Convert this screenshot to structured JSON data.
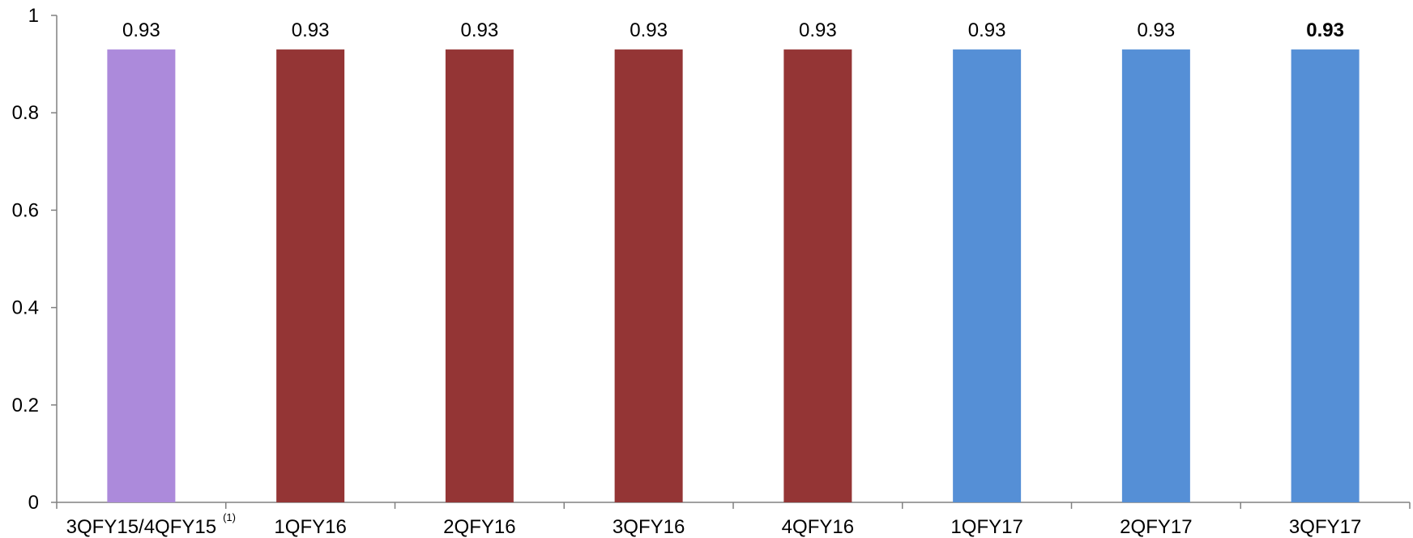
{
  "chart_data": {
    "type": "bar",
    "categories": [
      "3QFY15/4QFY15",
      "1QFY16",
      "2QFY16",
      "3QFY16",
      "4QFY16",
      "1QFY17",
      "2QFY17",
      "3QFY17"
    ],
    "category_footnotes": [
      "(1)",
      "",
      "",
      "",
      "",
      "",
      "",
      ""
    ],
    "values": [
      0.93,
      0.93,
      0.93,
      0.93,
      0.93,
      0.93,
      0.93,
      0.93
    ],
    "data_labels": [
      "0.93",
      "0.93",
      "0.93",
      "0.93",
      "0.93",
      "0.93",
      "0.93",
      "0.93"
    ],
    "bold_labels": [
      false,
      false,
      false,
      false,
      false,
      false,
      false,
      true
    ],
    "bar_colors": [
      "#AC8ADB",
      "#943535",
      "#943535",
      "#943535",
      "#943535",
      "#558FD6",
      "#558FD6",
      "#558FD6"
    ],
    "ylim": [
      0,
      1
    ],
    "yticks": [
      0,
      0.2,
      0.4,
      0.6,
      0.8,
      1
    ],
    "ytick_labels": [
      "0",
      "0.2",
      "0.4",
      "0.6",
      "0.8",
      "1"
    ],
    "grid": false,
    "legend": "none",
    "title": "",
    "xlabel": "",
    "ylabel": ""
  }
}
